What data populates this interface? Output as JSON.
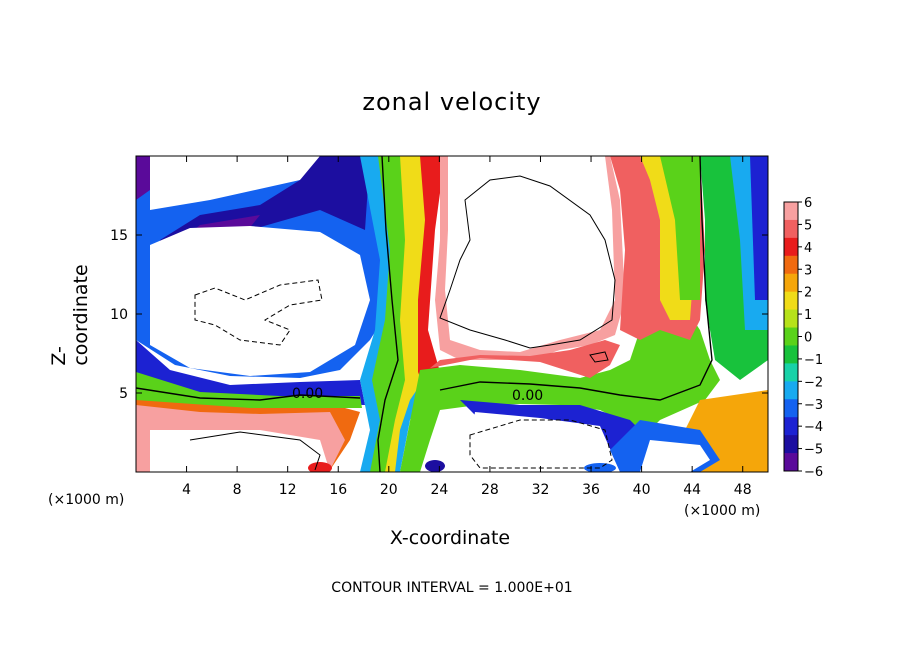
{
  "title": "zonal velocity",
  "x_unit_label_left": "(×1000 m)",
  "x_unit_label_right": "(×1000 m)",
  "footer": "CONTOUR INTERVAL = 1.000E+01",
  "chart_data": {
    "type": "heatmap",
    "title": "zonal velocity",
    "xlabel": "X-coordinate",
    "ylabel": "Z-coordinate",
    "xlim": [
      0,
      50
    ],
    "ylim": [
      0,
      20
    ],
    "x_ticks": [
      4,
      8,
      12,
      16,
      20,
      24,
      28,
      32,
      36,
      40,
      44,
      48
    ],
    "y_ticks": [
      5,
      10,
      15
    ],
    "colorbar": {
      "levels": [
        6,
        5,
        4,
        3,
        2,
        1,
        0,
        -1,
        -2,
        -3,
        -4,
        -5,
        -6
      ],
      "colors": [
        "#f7a0a0",
        "#f06060",
        "#e81c1c",
        "#f06a10",
        "#f5a60a",
        "#f0dc18",
        "#b6e21a",
        "#5ad21a",
        "#18c23c",
        "#18d2a8",
        "#18aaf0",
        "#1462f0",
        "#1c22d2",
        "#1c0ea0",
        "#5a0a9a"
      ],
      "extremes_note": "values beyond range shown as white"
    },
    "contour_labels": [
      "0.00",
      "0.00"
    ],
    "grid": false,
    "legend": "colorbar-right"
  }
}
